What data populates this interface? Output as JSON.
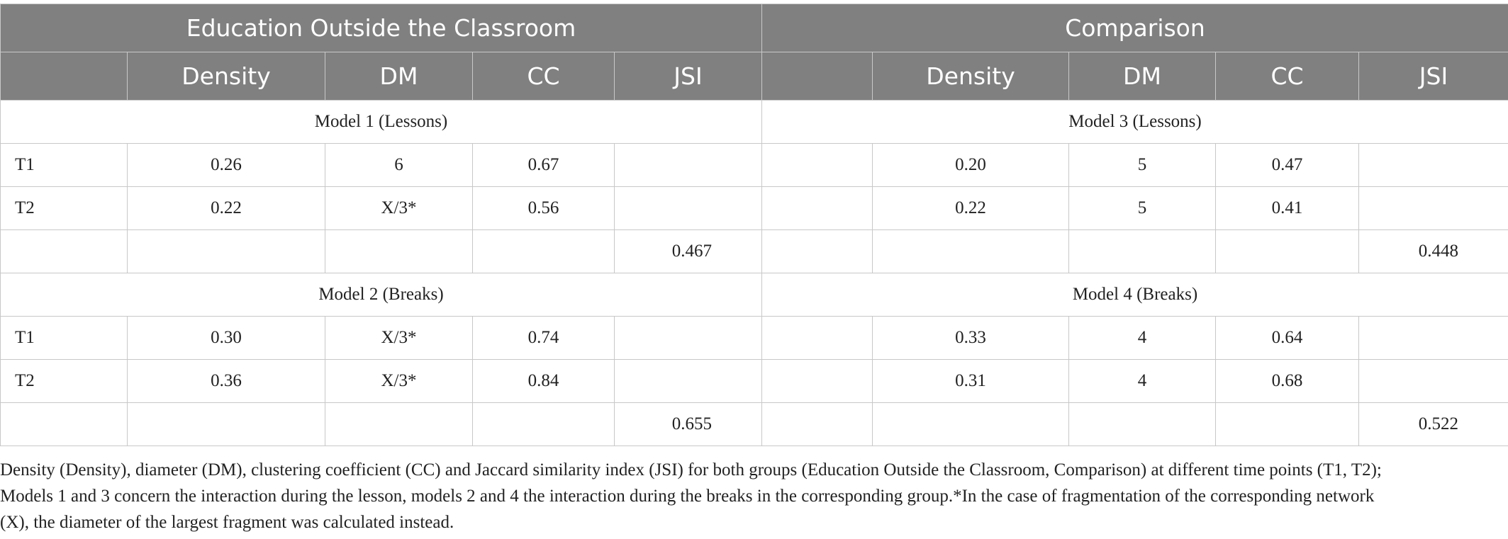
{
  "table": {
    "group_headers": [
      "Education Outside the Classroom",
      "Comparison"
    ],
    "column_headers": {
      "left": [
        "",
        "Density",
        "DM",
        "CC",
        "JSI"
      ],
      "right": [
        "",
        "Density",
        "DM",
        "CC",
        "JSI"
      ]
    },
    "blocks": [
      {
        "left_title": "Model 1 (Lessons)",
        "right_title": "Model 3 (Lessons)",
        "rows": [
          {
            "left": [
              "T1",
              "0.26",
              "6",
              "0.67",
              ""
            ],
            "right": [
              "",
              "0.20",
              "5",
              "0.47",
              ""
            ]
          },
          {
            "left": [
              "T2",
              "0.22",
              "X/3*",
              "0.56",
              ""
            ],
            "right": [
              "",
              "0.22",
              "5",
              "0.41",
              ""
            ]
          },
          {
            "left": [
              "",
              "",
              "",
              "",
              "0.467"
            ],
            "right": [
              "",
              "",
              "",
              "",
              "0.448"
            ]
          }
        ]
      },
      {
        "left_title": "Model 2 (Breaks)",
        "right_title": "Model 4 (Breaks)",
        "rows": [
          {
            "left": [
              "T1",
              "0.30",
              "X/3*",
              "0.74",
              ""
            ],
            "right": [
              "",
              "0.33",
              "4",
              "0.64",
              ""
            ]
          },
          {
            "left": [
              "T2",
              "0.36",
              "X/3*",
              "0.84",
              ""
            ],
            "right": [
              "",
              "0.31",
              "4",
              "0.68",
              ""
            ]
          },
          {
            "left": [
              "",
              "",
              "",
              "",
              "0.655"
            ],
            "right": [
              "",
              "",
              "",
              "",
              "0.522"
            ]
          }
        ]
      }
    ]
  },
  "caption": {
    "lines": [
      "Density (Density), diameter (DM), clustering coefficient (CC) and Jaccard similarity index (JSI) for both groups (Education Outside the Classroom, Comparison) at different time points (T1, T2);",
      "Models 1 and 3 concern the interaction during the lesson, models 2 and 4 the interaction during the breaks in the corresponding group.*In the case of fragmentation of the corresponding network",
      "(X), the diameter of the largest fragment was calculated instead."
    ]
  },
  "colors": {
    "header_bg": "#808080",
    "header_text": "#ffffff",
    "grid": "#c8c8c8",
    "body_text": "#222222"
  }
}
